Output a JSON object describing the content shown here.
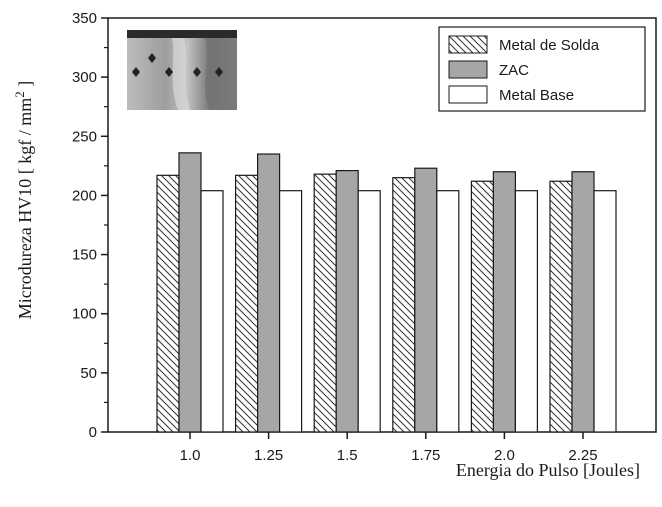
{
  "chart_data": {
    "type": "bar",
    "title": "",
    "xlabel": "Energia do Pulso [Joules]",
    "ylabel": {
      "main": "Microdureza HV10  [ kgf / mm",
      "sup": "2",
      "end": " ]"
    },
    "ylim": [
      0,
      350
    ],
    "yticks": [
      "0",
      "50",
      "100",
      "150",
      "200",
      "250",
      "300",
      "350"
    ],
    "categories": [
      "1.0",
      "1.25",
      "1.5",
      "1.75",
      "2.0",
      "2.25"
    ],
    "series": [
      {
        "name": "Metal de Solda",
        "values": [
          217,
          217,
          218,
          215,
          212,
          212
        ]
      },
      {
        "name": "ZAC",
        "values": [
          236,
          235,
          221,
          223,
          220,
          220
        ]
      },
      {
        "name": "Metal Base",
        "values": [
          204,
          204,
          204,
          204,
          204,
          204
        ]
      }
    ],
    "legend_position": "top-right",
    "grid": false,
    "colors": {
      "zac": "#a6a6a6",
      "outline": "#1a1a1a",
      "background": "#ffffff"
    },
    "inset": "micrograph-photo"
  }
}
